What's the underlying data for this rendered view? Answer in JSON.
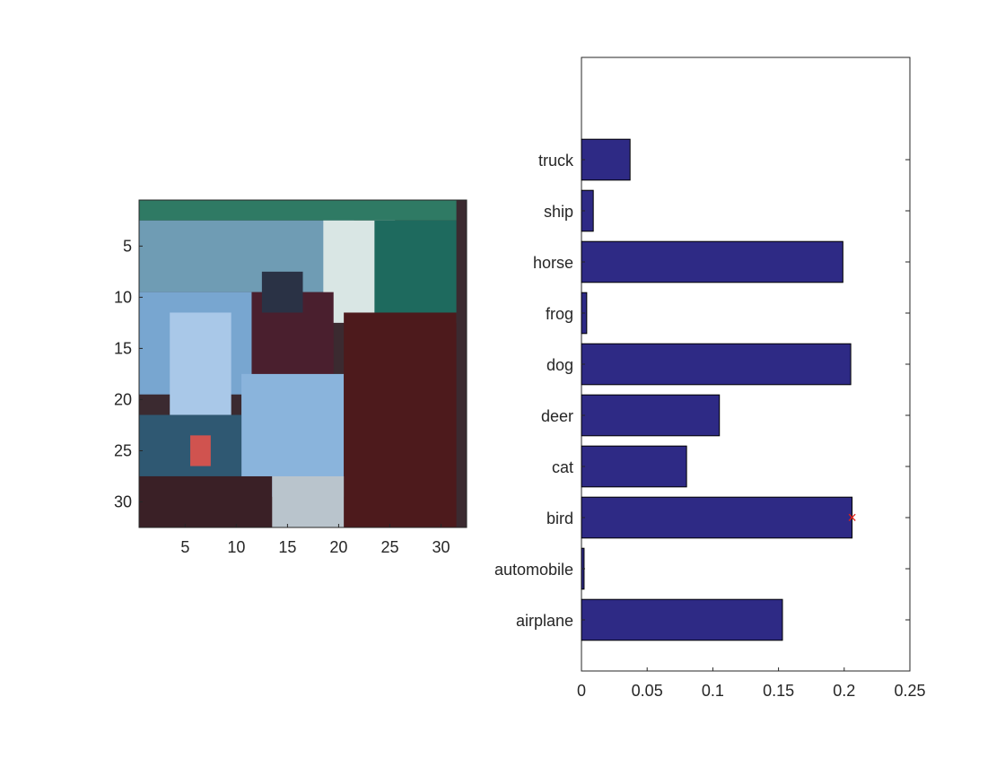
{
  "chart_data": [
    {
      "type": "heatmap",
      "grid_size": 32,
      "xticks": [
        "5",
        "10",
        "15",
        "20",
        "25",
        "30"
      ],
      "yticks": [
        "5",
        "10",
        "15",
        "20",
        "25",
        "30"
      ],
      "xlim": [
        0.5,
        32.5
      ],
      "ylim": [
        0.5,
        32.5
      ],
      "image_regions": [
        {
          "x": [
            1,
            32
          ],
          "y": [
            1,
            3
          ],
          "color": "#2f7a64"
        },
        {
          "x": [
            1,
            22
          ],
          "y": [
            3,
            10
          ],
          "color": "#6f9cb4"
        },
        {
          "x": [
            1,
            12
          ],
          "y": [
            10,
            20
          ],
          "color": "#78a6d0"
        },
        {
          "x": [
            4,
            10
          ],
          "y": [
            12,
            22
          ],
          "color": "#a9c8e8"
        },
        {
          "x": [
            19,
            26
          ],
          "y": [
            3,
            13
          ],
          "color": "#d9e6e4"
        },
        {
          "x": [
            24,
            32
          ],
          "y": [
            3,
            13
          ],
          "color": "#1e6a5e"
        },
        {
          "x": [
            12,
            20
          ],
          "y": [
            10,
            19
          ],
          "color": "#4a1f2e"
        },
        {
          "x": [
            13,
            17
          ],
          "y": [
            8,
            12
          ],
          "color": "#2a3245"
        },
        {
          "x": [
            11,
            21
          ],
          "y": [
            18,
            30
          ],
          "color": "#8ab4dc"
        },
        {
          "x": [
            21,
            32
          ],
          "y": [
            12,
            33
          ],
          "color": "#4d1a1c"
        },
        {
          "x": [
            1,
            11
          ],
          "y": [
            22,
            28
          ],
          "color": "#2f5872"
        },
        {
          "x": [
            6,
            8
          ],
          "y": [
            24,
            27
          ],
          "color": "#d0534f"
        },
        {
          "x": [
            1,
            14
          ],
          "y": [
            28,
            33
          ],
          "color": "#3a2026"
        },
        {
          "x": [
            14,
            21
          ],
          "y": [
            28,
            33
          ],
          "color": "#b9c4cc"
        }
      ]
    },
    {
      "type": "bar",
      "orientation": "horizontal",
      "categories": [
        "airplane",
        "automobile",
        "bird",
        "cat",
        "deer",
        "dog",
        "frog",
        "horse",
        "ship",
        "truck"
      ],
      "values": [
        0.153,
        0.002,
        0.206,
        0.08,
        0.105,
        0.205,
        0.004,
        0.199,
        0.009,
        0.037
      ],
      "xlim": [
        0,
        0.25
      ],
      "ylim": [
        0,
        12
      ],
      "xticks": [
        "0",
        "0.05",
        "0.1",
        "0.15",
        "0.2",
        "0.25"
      ],
      "bar_color": "#2e2a85",
      "marker": {
        "category": "bird",
        "value": 0.206,
        "symbol": "×",
        "color": "#e2231a"
      }
    }
  ]
}
